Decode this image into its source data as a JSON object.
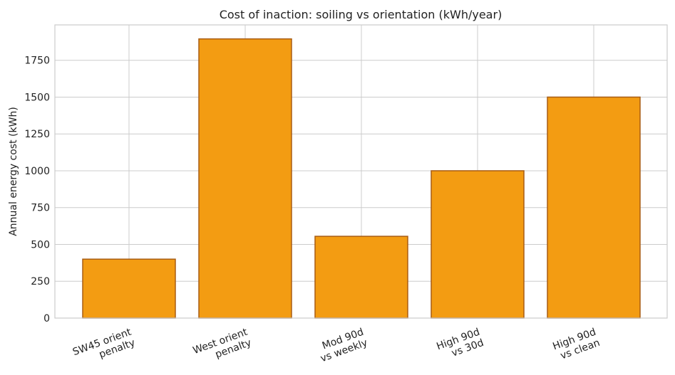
{
  "chart_data": {
    "type": "bar",
    "title": "Cost of inaction: soiling vs orientation (kWh/year)",
    "xlabel": "",
    "ylabel": "Annual energy cost (kWh)",
    "categories": [
      [
        "SW45 orient",
        "penalty"
      ],
      [
        "West orient",
        "penalty"
      ],
      [
        "Mod 90d",
        "vs weekly"
      ],
      [
        "High 90d",
        "vs 30d"
      ],
      [
        "High 90d",
        "vs clean"
      ]
    ],
    "values": [
      400,
      1895,
      555,
      1000,
      1500
    ],
    "ylim": [
      0,
      1990
    ],
    "yticks": [
      0,
      250,
      500,
      750,
      1000,
      1250,
      1500,
      1750
    ],
    "grid": true,
    "bar_color": "#f39c12",
    "bar_edge_color": "#a85d14"
  }
}
